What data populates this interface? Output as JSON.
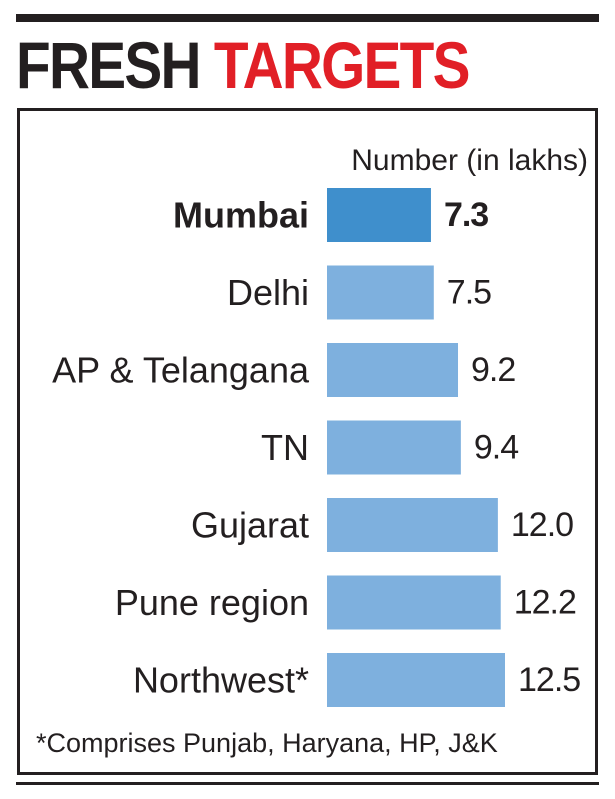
{
  "header": {
    "title_part1": "FRESH",
    "title_part2": "TARGETS"
  },
  "footnote": "*Comprises Punjab, Haryana, HP, J&K",
  "colors": {
    "ink": "#231f20",
    "accent_red": "#e11f26",
    "bar": "#7eb0de",
    "bar_highlight": "#3f8fcc"
  },
  "chart_data": {
    "type": "bar",
    "orientation": "horizontal",
    "unit_label": "Number (in lakhs)",
    "categories": [
      "Mumbai",
      "Delhi",
      "AP & Telangana",
      "TN",
      "Gujarat",
      "Pune region",
      "Northwest*"
    ],
    "values": [
      7.3,
      7.5,
      9.2,
      9.4,
      12.0,
      12.2,
      12.5
    ],
    "value_labels": [
      "7.3",
      "7.5",
      "9.2",
      "9.4",
      "12.0",
      "12.2",
      "12.5"
    ],
    "highlight_category": "Mumbai",
    "xlim": [
      0,
      12.5
    ],
    "grid": false,
    "legend": "none"
  }
}
